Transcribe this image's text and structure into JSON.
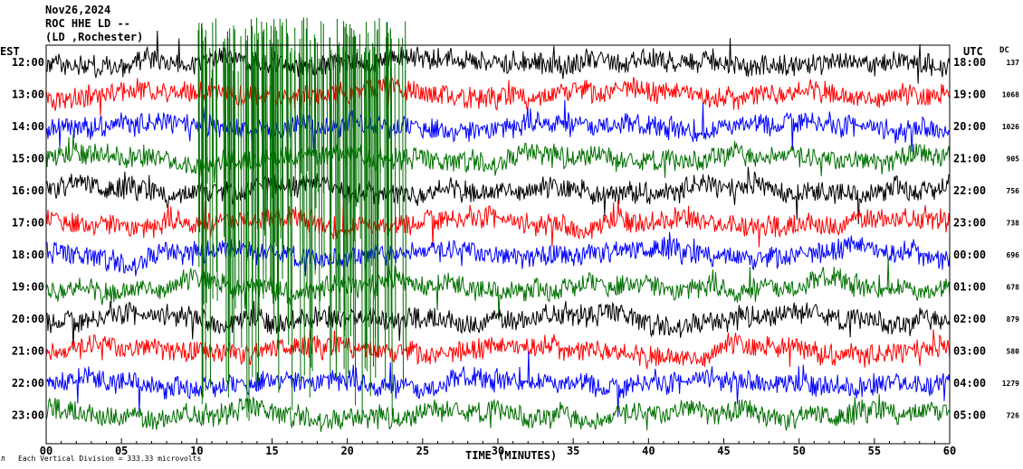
{
  "header": {
    "date": "Nov26,2024",
    "station": "ROC HHE LD --",
    "location": "(LD ,Rochester)"
  },
  "left_axis_title": "EST",
  "right_axis_title": "UTC",
  "dc_title": "DC",
  "footer": {
    "xlabel": "TIME (MINUTES)",
    "scale_note": "Each Vertical Division = 333.33 microvolts"
  },
  "chart_data": {
    "type": "line",
    "title": "Nov26,2024 ROC HHE LD -- (LD ,Rochester)",
    "xlabel": "TIME (MINUTES)",
    "xlim": [
      0,
      60
    ],
    "x_ticks": [
      "00",
      "05",
      "10",
      "15",
      "20",
      "25",
      "30",
      "35",
      "40",
      "45",
      "50",
      "55",
      "60"
    ],
    "left_labels": [
      "12:00",
      "13:00",
      "14:00",
      "15:00",
      "16:00",
      "17:00",
      "18:00",
      "19:00",
      "20:00",
      "21:00",
      "22:00",
      "23:00"
    ],
    "right_labels": [
      "18:00",
      "19:00",
      "20:00",
      "21:00",
      "22:00",
      "23:00",
      "00:00",
      "01:00",
      "02:00",
      "03:00",
      "04:00",
      "05:00"
    ],
    "dc_values": [
      "137",
      "1068",
      "1026",
      "905",
      "756",
      "738",
      "696",
      "678",
      "879",
      "580",
      "1279",
      "726"
    ],
    "trace_colors": [
      "#000000",
      "#ff0000",
      "#0000ff",
      "#007000"
    ],
    "grid": false
  }
}
